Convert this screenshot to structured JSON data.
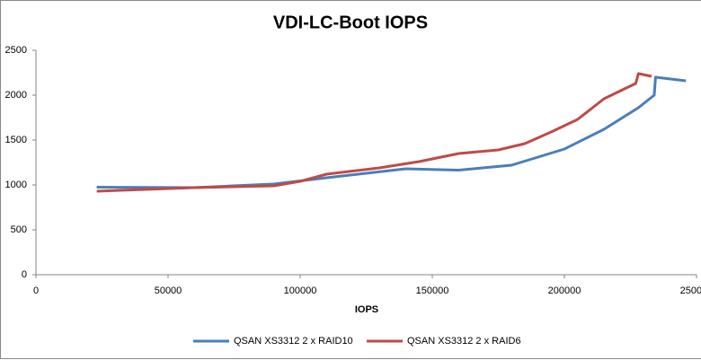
{
  "chart_data": {
    "type": "line",
    "title": "VDI-LC-Boot IOPS",
    "x_label": "IOPS",
    "xlim": [
      0,
      250000
    ],
    "xticks": [
      0,
      50000,
      100000,
      150000,
      200000,
      250000
    ],
    "ylim": [
      0,
      2500
    ],
    "yticks": [
      0,
      500,
      1000,
      1500,
      2000,
      2500
    ],
    "grid": false,
    "legend": "bottom",
    "series": [
      {
        "name": "QSAN XS3312 2 x RAID10",
        "color": "#4a7ebb",
        "x": [
          23000,
          60000,
          90000,
          110000,
          140000,
          160000,
          180000,
          200000,
          215000,
          228000,
          234000,
          234500,
          246000
        ],
        "values": [
          975,
          970,
          1010,
          1080,
          1180,
          1165,
          1220,
          1400,
          1620,
          1860,
          2000,
          2200,
          2160
        ]
      },
      {
        "name": "QSAN XS3312 2 x RAID6",
        "color": "#be4b48",
        "x": [
          23000,
          60000,
          90000,
          100000,
          110000,
          130000,
          145000,
          160000,
          175000,
          185000,
          195000,
          205000,
          215000,
          222000,
          227000,
          228000,
          233000
        ],
        "values": [
          930,
          970,
          990,
          1040,
          1120,
          1190,
          1260,
          1350,
          1390,
          1460,
          1590,
          1730,
          1960,
          2060,
          2130,
          2240,
          2210
        ]
      }
    ]
  }
}
